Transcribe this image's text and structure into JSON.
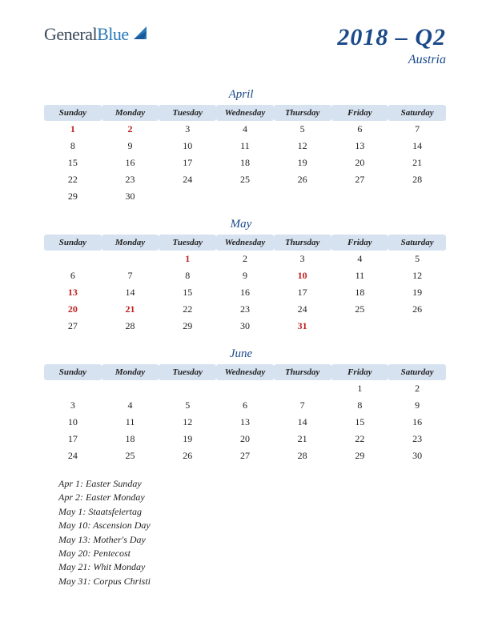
{
  "logo": {
    "part1": "General",
    "part2": "Blue"
  },
  "title": {
    "main": "2018 – Q2",
    "sub": "Austria"
  },
  "colors": {
    "header_bg": "#d7e2f0",
    "title_color": "#1a4a8a",
    "holiday_color": "#c02020",
    "text_color": "#222222",
    "logo_gray": "#3a4a5a",
    "logo_blue": "#2a7ab8"
  },
  "day_headers": [
    "Sunday",
    "Monday",
    "Tuesday",
    "Wednesday",
    "Thursday",
    "Friday",
    "Saturday"
  ],
  "months": [
    {
      "name": "April",
      "weeks": [
        [
          {
            "d": 1,
            "h": true
          },
          {
            "d": 2,
            "h": true
          },
          {
            "d": 3
          },
          {
            "d": 4
          },
          {
            "d": 5
          },
          {
            "d": 6
          },
          {
            "d": 7
          }
        ],
        [
          {
            "d": 8
          },
          {
            "d": 9
          },
          {
            "d": 10
          },
          {
            "d": 11
          },
          {
            "d": 12
          },
          {
            "d": 13
          },
          {
            "d": 14
          }
        ],
        [
          {
            "d": 15
          },
          {
            "d": 16
          },
          {
            "d": 17
          },
          {
            "d": 18
          },
          {
            "d": 19
          },
          {
            "d": 20
          },
          {
            "d": 21
          }
        ],
        [
          {
            "d": 22
          },
          {
            "d": 23
          },
          {
            "d": 24
          },
          {
            "d": 25
          },
          {
            "d": 26
          },
          {
            "d": 27
          },
          {
            "d": 28
          }
        ],
        [
          {
            "d": 29
          },
          {
            "d": 30
          },
          null,
          null,
          null,
          null,
          null
        ]
      ]
    },
    {
      "name": "May",
      "weeks": [
        [
          null,
          null,
          {
            "d": 1,
            "h": true
          },
          {
            "d": 2
          },
          {
            "d": 3
          },
          {
            "d": 4
          },
          {
            "d": 5
          }
        ],
        [
          {
            "d": 6
          },
          {
            "d": 7
          },
          {
            "d": 8
          },
          {
            "d": 9
          },
          {
            "d": 10,
            "h": true
          },
          {
            "d": 11
          },
          {
            "d": 12
          }
        ],
        [
          {
            "d": 13,
            "h": true
          },
          {
            "d": 14
          },
          {
            "d": 15
          },
          {
            "d": 16
          },
          {
            "d": 17
          },
          {
            "d": 18
          },
          {
            "d": 19
          }
        ],
        [
          {
            "d": 20,
            "h": true
          },
          {
            "d": 21,
            "h": true
          },
          {
            "d": 22
          },
          {
            "d": 23
          },
          {
            "d": 24
          },
          {
            "d": 25
          },
          {
            "d": 26
          }
        ],
        [
          {
            "d": 27
          },
          {
            "d": 28
          },
          {
            "d": 29
          },
          {
            "d": 30
          },
          {
            "d": 31,
            "h": true
          },
          null,
          null
        ]
      ]
    },
    {
      "name": "June",
      "weeks": [
        [
          null,
          null,
          null,
          null,
          null,
          {
            "d": 1
          },
          {
            "d": 2
          }
        ],
        [
          {
            "d": 3
          },
          {
            "d": 4
          },
          {
            "d": 5
          },
          {
            "d": 6
          },
          {
            "d": 7
          },
          {
            "d": 8
          },
          {
            "d": 9
          }
        ],
        [
          {
            "d": 10
          },
          {
            "d": 11
          },
          {
            "d": 12
          },
          {
            "d": 13
          },
          {
            "d": 14
          },
          {
            "d": 15
          },
          {
            "d": 16
          }
        ],
        [
          {
            "d": 17
          },
          {
            "d": 18
          },
          {
            "d": 19
          },
          {
            "d": 20
          },
          {
            "d": 21
          },
          {
            "d": 22
          },
          {
            "d": 23
          }
        ],
        [
          {
            "d": 24
          },
          {
            "d": 25
          },
          {
            "d": 26
          },
          {
            "d": 27
          },
          {
            "d": 28
          },
          {
            "d": 29
          },
          {
            "d": 30
          }
        ]
      ]
    }
  ],
  "holidays": [
    "Apr 1: Easter Sunday",
    "Apr 2: Easter Monday",
    "May 1: Staatsfeiertag",
    "May 10: Ascension Day",
    "May 13: Mother's Day",
    "May 20: Pentecost",
    "May 21: Whit Monday",
    "May 31: Corpus Christi"
  ]
}
